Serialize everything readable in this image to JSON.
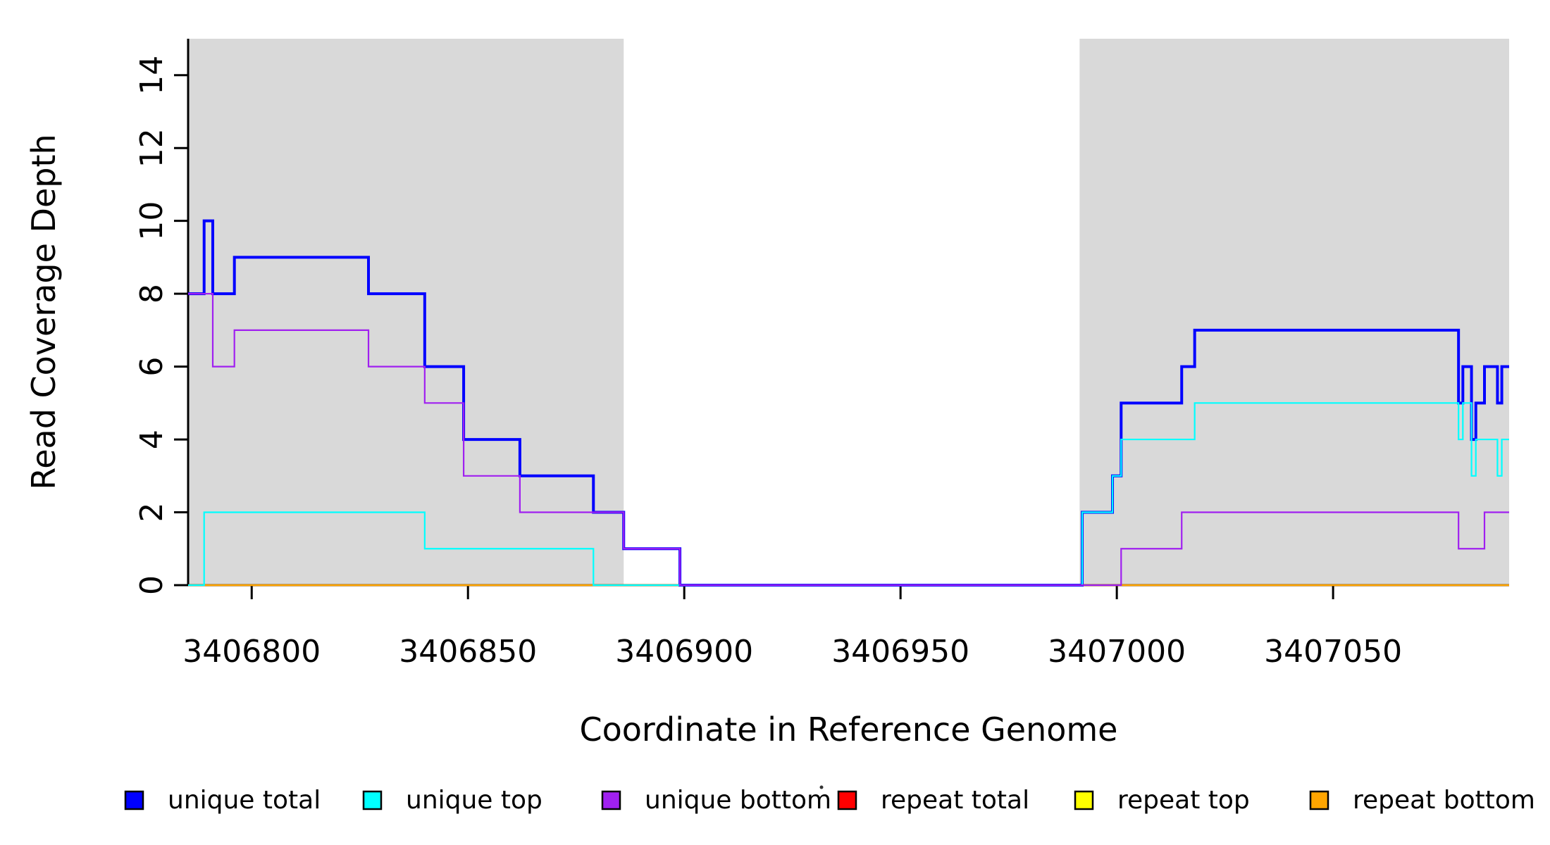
{
  "chart_data": {
    "type": "line",
    "subtype": "step",
    "xlabel": "Coordinate in Reference Genome",
    "ylabel": "Read Coverage Depth",
    "xlim": [
      3406785.3,
      3407090.7
    ],
    "ylim": [
      0,
      15
    ],
    "x_ticks": [
      3406800,
      3406850,
      3406900,
      3406950,
      3407000,
      3407050
    ],
    "y_ticks": [
      0,
      2,
      4,
      6,
      8,
      10,
      12,
      14
    ],
    "grid": false,
    "shade_color": "#d9d9d9",
    "shaded_regions": [
      {
        "x0": 3406785.3,
        "x1": 3406886
      },
      {
        "x0": 3406991.4,
        "x1": 3407090.7
      }
    ],
    "axis_color": "#000000",
    "background_color": "#ffffff",
    "legend_position": "bottom",
    "series": [
      {
        "name": "unique total",
        "color": "#0000ff",
        "line_width": 4,
        "start_value": 8,
        "steps": [
          [
            3406789,
            10
          ],
          [
            3406791,
            8
          ],
          [
            3406796,
            9
          ],
          [
            3406827,
            8
          ],
          [
            3406840,
            6
          ],
          [
            3406849,
            4
          ],
          [
            3406862,
            3
          ],
          [
            3406879,
            2
          ],
          [
            3406886,
            1
          ],
          [
            3406899,
            0
          ],
          [
            3406992,
            2
          ],
          [
            3406999,
            3
          ],
          [
            3407001,
            5
          ],
          [
            3407015,
            6
          ],
          [
            3407018,
            7
          ],
          [
            3407079,
            5
          ],
          [
            3407080,
            6
          ],
          [
            3407082,
            4
          ],
          [
            3407083,
            5
          ],
          [
            3407085,
            6
          ],
          [
            3407088,
            5
          ],
          [
            3407089,
            6
          ]
        ]
      },
      {
        "name": "unique top",
        "color": "#00ffff",
        "line_width": 2.2,
        "start_value": 0,
        "steps": [
          [
            3406789,
            2
          ],
          [
            3406840,
            1
          ],
          [
            3406879,
            0
          ],
          [
            3406992,
            2
          ],
          [
            3406999,
            3
          ],
          [
            3407001,
            4
          ],
          [
            3407018,
            5
          ],
          [
            3407079,
            4
          ],
          [
            3407080,
            5
          ],
          [
            3407082,
            3
          ],
          [
            3407083,
            4
          ],
          [
            3407088,
            3
          ],
          [
            3407089,
            4
          ]
        ]
      },
      {
        "name": "unique bottom",
        "color": "#a020f0",
        "line_width": 2.2,
        "start_value": 8,
        "steps": [
          [
            3406791,
            6
          ],
          [
            3406796,
            7
          ],
          [
            3406827,
            6
          ],
          [
            3406840,
            5
          ],
          [
            3406849,
            3
          ],
          [
            3406862,
            2
          ],
          [
            3406886,
            1
          ],
          [
            3406899,
            0
          ],
          [
            3407001,
            1
          ],
          [
            3407015,
            2
          ],
          [
            3407079,
            1
          ],
          [
            3407085,
            2
          ]
        ]
      },
      {
        "name": "repeat total",
        "color": "#ff0000",
        "line_width": 2.2,
        "start_value": 0,
        "steps": []
      },
      {
        "name": "repeat top",
        "color": "#ffff00",
        "line_width": 2.2,
        "start_value": 0,
        "steps": []
      },
      {
        "name": "repeat bottom",
        "color": "#ffa500",
        "line_width": 2.2,
        "start_value": 0,
        "steps": []
      }
    ],
    "draw_order": [
      "repeat total",
      "repeat top",
      "repeat bottom",
      "unique total",
      "unique top",
      "unique bottom"
    ],
    "legend": [
      {
        "label": "unique total",
        "color": "#0000ff"
      },
      {
        "label": "unique top",
        "color": "#00ffff"
      },
      {
        "label": "unique bottom",
        "color": "#a020f0"
      },
      {
        "label": "repeat total",
        "color": "#ff0000"
      },
      {
        "label": "repeat top",
        "color": "#ffff00"
      },
      {
        "label": "repeat bottom",
        "color": "#ffa500"
      }
    ]
  }
}
